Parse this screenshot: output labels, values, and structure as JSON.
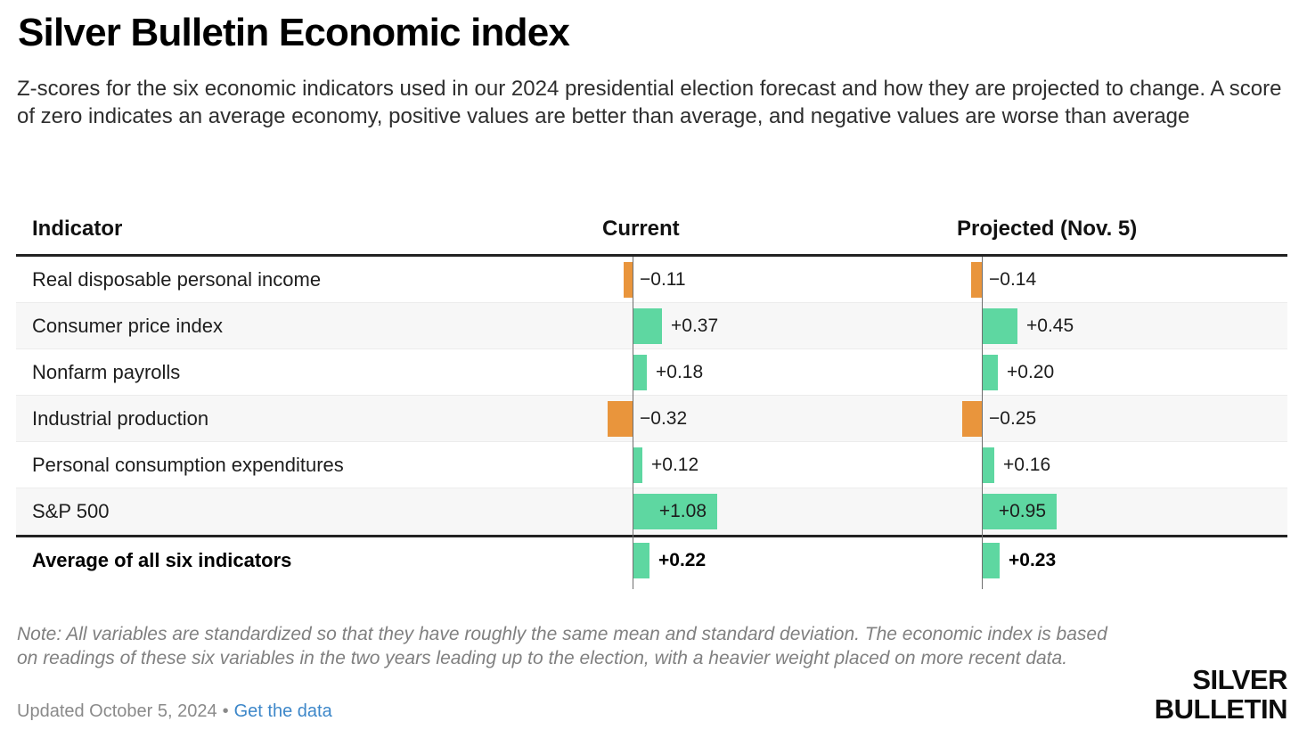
{
  "header": {
    "title": "Silver Bulletin Economic index",
    "subtitle": "Z-scores for the six economic indicators used in our 2024 presidential election forecast and how they are projected to change. A score of zero indicates an average economy, positive values are better than average, and negative values are worse than average"
  },
  "table": {
    "columns": [
      "Indicator",
      "Current",
      "Projected (Nov. 5)"
    ],
    "rows": [
      {
        "label": "Real disposable personal income",
        "current": -0.11,
        "current_label": "−0.11",
        "projected": -0.14,
        "projected_label": "−0.14"
      },
      {
        "label": "Consumer price index",
        "current": 0.37,
        "current_label": "+0.37",
        "projected": 0.45,
        "projected_label": "+0.45"
      },
      {
        "label": "Nonfarm payrolls",
        "current": 0.18,
        "current_label": "+0.18",
        "projected": 0.2,
        "projected_label": "+0.20"
      },
      {
        "label": "Industrial production",
        "current": -0.32,
        "current_label": "−0.32",
        "projected": -0.25,
        "projected_label": "−0.25"
      },
      {
        "label": "Personal consumption expenditures",
        "current": 0.12,
        "current_label": "+0.12",
        "projected": 0.16,
        "projected_label": "+0.16"
      },
      {
        "label": "S&P 500",
        "current": 1.08,
        "current_label": "+1.08",
        "projected": 0.95,
        "projected_label": "+0.95"
      }
    ],
    "average_row": {
      "label": "Average of all six indicators",
      "current": 0.22,
      "current_label": "+0.22",
      "projected": 0.23,
      "projected_label": "+0.23"
    }
  },
  "footer": {
    "note": "Note: All variables are standardized so that they have roughly the same mean and standard deviation. The economic index is based on readings of these six variables in the two years leading up to the election, with a heavier weight placed on more recent data.",
    "updated": "Updated October 5, 2024",
    "bullet": "•",
    "link": "Get the data",
    "logo_line1": "SILVER",
    "logo_line2": "BULLETIN"
  },
  "colors": {
    "positive": "#5ed7a1",
    "negative": "#e9953c",
    "link": "#3d87c9"
  },
  "chart_data": {
    "type": "table",
    "title": "Silver Bulletin Economic index",
    "columns": [
      "Indicator",
      "Current",
      "Projected (Nov. 5)"
    ],
    "categories": [
      "Real disposable personal income",
      "Consumer price index",
      "Nonfarm payrolls",
      "Industrial production",
      "Personal consumption expenditures",
      "S&P 500"
    ],
    "series": [
      {
        "name": "Current",
        "values": [
          -0.11,
          0.37,
          0.18,
          -0.32,
          0.12,
          1.08
        ]
      },
      {
        "name": "Projected (Nov. 5)",
        "values": [
          -0.14,
          0.45,
          0.2,
          -0.25,
          0.16,
          0.95
        ]
      }
    ],
    "average": {
      "label": "Average of all six indicators",
      "Current": 0.22,
      "Projected (Nov. 5)": 0.23
    },
    "value_format": "signed z-score, bar length proportional to |value|, zero baseline per column",
    "positive_color": "#5ed7a1",
    "negative_color": "#e9953c"
  }
}
